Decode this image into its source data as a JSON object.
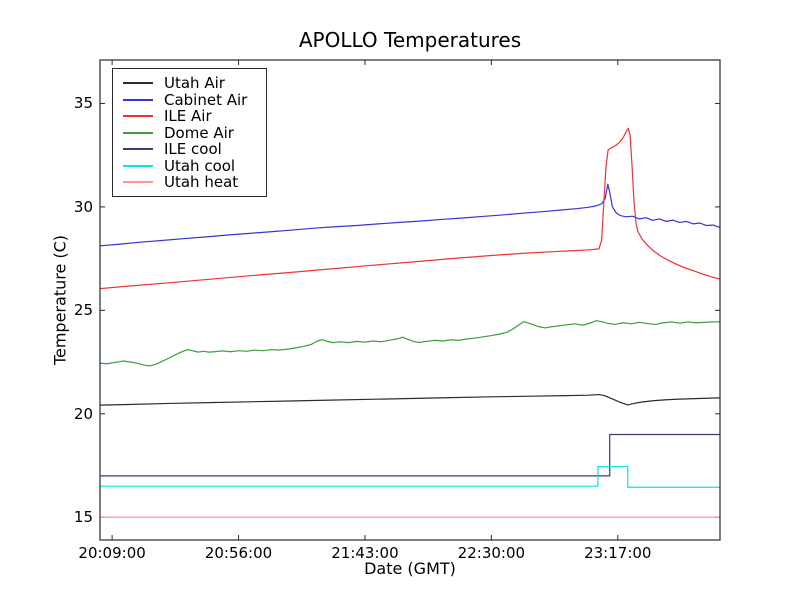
{
  "chart_data": {
    "type": "line",
    "title": "APOLLO Temperatures",
    "xlabel": "Date (GMT)",
    "ylabel": "Temperature (C)",
    "x_unit": "minutes after 20:00:00 GMT",
    "xlim": [
      4.5,
      235
    ],
    "ylim": [
      13.9,
      37.1
    ],
    "grid": false,
    "legend_position": "upper left",
    "x_ticks": [
      {
        "t": 9,
        "label": "20:09:00"
      },
      {
        "t": 56,
        "label": "20:56:00"
      },
      {
        "t": 103,
        "label": "21:43:00"
      },
      {
        "t": 150,
        "label": "22:30:00"
      },
      {
        "t": 197,
        "label": "23:17:00"
      }
    ],
    "y_ticks": [
      15,
      20,
      25,
      30,
      35
    ],
    "series": [
      {
        "name": "Utah Air",
        "color": "#2d2d2d",
        "points": [
          [
            4.5,
            20.42
          ],
          [
            15,
            20.45
          ],
          [
            30,
            20.5
          ],
          [
            45,
            20.54
          ],
          [
            60,
            20.58
          ],
          [
            75,
            20.62
          ],
          [
            90,
            20.66
          ],
          [
            105,
            20.7
          ],
          [
            120,
            20.74
          ],
          [
            135,
            20.78
          ],
          [
            150,
            20.82
          ],
          [
            165,
            20.85
          ],
          [
            178,
            20.88
          ],
          [
            186,
            20.9
          ],
          [
            190,
            20.93
          ],
          [
            192,
            20.88
          ],
          [
            195,
            20.72
          ],
          [
            198,
            20.55
          ],
          [
            200.7,
            20.43
          ],
          [
            203,
            20.5
          ],
          [
            206,
            20.57
          ],
          [
            210,
            20.63
          ],
          [
            215,
            20.68
          ],
          [
            220,
            20.71
          ],
          [
            227,
            20.74
          ],
          [
            235,
            20.77
          ]
        ]
      },
      {
        "name": "Cabinet Air",
        "color": "#3535d6",
        "points": [
          [
            4.5,
            28.12
          ],
          [
            12,
            28.2
          ],
          [
            20,
            28.3
          ],
          [
            28,
            28.38
          ],
          [
            36,
            28.47
          ],
          [
            44,
            28.55
          ],
          [
            52,
            28.64
          ],
          [
            60,
            28.72
          ],
          [
            68,
            28.8
          ],
          [
            76,
            28.88
          ],
          [
            84,
            28.97
          ],
          [
            92,
            29.04
          ],
          [
            100,
            29.1
          ],
          [
            108,
            29.18
          ],
          [
            116,
            29.25
          ],
          [
            124,
            29.32
          ],
          [
            132,
            29.4
          ],
          [
            140,
            29.47
          ],
          [
            148,
            29.55
          ],
          [
            156,
            29.63
          ],
          [
            164,
            29.72
          ],
          [
            170,
            29.78
          ],
          [
            176,
            29.85
          ],
          [
            182,
            29.92
          ],
          [
            186,
            29.98
          ],
          [
            189,
            30.05
          ],
          [
            191,
            30.15
          ],
          [
            192.3,
            30.4
          ],
          [
            193.3,
            31.1
          ],
          [
            194,
            30.7
          ],
          [
            195,
            30.0
          ],
          [
            196.5,
            29.7
          ],
          [
            198,
            29.58
          ],
          [
            200,
            29.52
          ],
          [
            202.5,
            29.55
          ],
          [
            205,
            29.42
          ],
          [
            207.5,
            29.48
          ],
          [
            210,
            29.35
          ],
          [
            212.5,
            29.42
          ],
          [
            215,
            29.3
          ],
          [
            217.5,
            29.36
          ],
          [
            220,
            29.25
          ],
          [
            222.5,
            29.3
          ],
          [
            225,
            29.18
          ],
          [
            227.5,
            29.22
          ],
          [
            230,
            29.1
          ],
          [
            232.5,
            29.12
          ],
          [
            235,
            29.0
          ]
        ]
      },
      {
        "name": "ILE Air",
        "color": "#ee3333",
        "points": [
          [
            4.5,
            26.05
          ],
          [
            15,
            26.17
          ],
          [
            30,
            26.33
          ],
          [
            45,
            26.5
          ],
          [
            60,
            26.67
          ],
          [
            75,
            26.83
          ],
          [
            90,
            27.0
          ],
          [
            105,
            27.17
          ],
          [
            120,
            27.33
          ],
          [
            135,
            27.5
          ],
          [
            150,
            27.65
          ],
          [
            162,
            27.76
          ],
          [
            172,
            27.83
          ],
          [
            180,
            27.88
          ],
          [
            186,
            27.92
          ],
          [
            190,
            27.97
          ],
          [
            191,
            28.4
          ],
          [
            191.8,
            30.2
          ],
          [
            192.6,
            31.9
          ],
          [
            193.4,
            32.75
          ],
          [
            194.5,
            32.85
          ],
          [
            196,
            32.95
          ],
          [
            197.5,
            33.1
          ],
          [
            199,
            33.35
          ],
          [
            200.2,
            33.65
          ],
          [
            200.9,
            33.8
          ],
          [
            201.6,
            33.45
          ],
          [
            202.3,
            32.0
          ],
          [
            203,
            30.3
          ],
          [
            203.8,
            29.2
          ],
          [
            204.5,
            28.8
          ],
          [
            206,
            28.45
          ],
          [
            208,
            28.15
          ],
          [
            210.5,
            27.85
          ],
          [
            213,
            27.62
          ],
          [
            216,
            27.4
          ],
          [
            219,
            27.22
          ],
          [
            222,
            27.05
          ],
          [
            225,
            26.92
          ],
          [
            228,
            26.78
          ],
          [
            231,
            26.65
          ],
          [
            233.5,
            26.56
          ],
          [
            235,
            26.52
          ]
        ]
      },
      {
        "name": "Dome Air",
        "color": "#3c9e3c",
        "points": [
          [
            4.5,
            22.45
          ],
          [
            7,
            22.42
          ],
          [
            9,
            22.46
          ],
          [
            11,
            22.5
          ],
          [
            13,
            22.55
          ],
          [
            15,
            22.52
          ],
          [
            17,
            22.48
          ],
          [
            19,
            22.42
          ],
          [
            21,
            22.35
          ],
          [
            23,
            22.32
          ],
          [
            25,
            22.38
          ],
          [
            27,
            22.5
          ],
          [
            29,
            22.62
          ],
          [
            31,
            22.75
          ],
          [
            33,
            22.88
          ],
          [
            35,
            23.0
          ],
          [
            37,
            23.1
          ],
          [
            39,
            23.05
          ],
          [
            41,
            22.98
          ],
          [
            43,
            23.02
          ],
          [
            45,
            22.98
          ],
          [
            47,
            23.0
          ],
          [
            50,
            23.04
          ],
          [
            53,
            23.0
          ],
          [
            56,
            23.05
          ],
          [
            59,
            23.02
          ],
          [
            62,
            23.08
          ],
          [
            65,
            23.05
          ],
          [
            68,
            23.1
          ],
          [
            71,
            23.08
          ],
          [
            74,
            23.12
          ],
          [
            77,
            23.18
          ],
          [
            80,
            23.25
          ],
          [
            83,
            23.35
          ],
          [
            85,
            23.5
          ],
          [
            87,
            23.58
          ],
          [
            89,
            23.5
          ],
          [
            91,
            23.44
          ],
          [
            94,
            23.48
          ],
          [
            97,
            23.44
          ],
          [
            100,
            23.5
          ],
          [
            103,
            23.46
          ],
          [
            106,
            23.52
          ],
          [
            109,
            23.48
          ],
          [
            112,
            23.55
          ],
          [
            115,
            23.62
          ],
          [
            117,
            23.7
          ],
          [
            119,
            23.6
          ],
          [
            121,
            23.5
          ],
          [
            123,
            23.45
          ],
          [
            126,
            23.5
          ],
          [
            129,
            23.55
          ],
          [
            132,
            23.52
          ],
          [
            135,
            23.58
          ],
          [
            138,
            23.55
          ],
          [
            141,
            23.62
          ],
          [
            144,
            23.66
          ],
          [
            147,
            23.72
          ],
          [
            150,
            23.78
          ],
          [
            153,
            23.85
          ],
          [
            156,
            23.95
          ],
          [
            158,
            24.1
          ],
          [
            160,
            24.28
          ],
          [
            162,
            24.45
          ],
          [
            164,
            24.38
          ],
          [
            166,
            24.28
          ],
          [
            168,
            24.2
          ],
          [
            170,
            24.15
          ],
          [
            172,
            24.2
          ],
          [
            175,
            24.25
          ],
          [
            178,
            24.3
          ],
          [
            181,
            24.35
          ],
          [
            184,
            24.28
          ],
          [
            187,
            24.4
          ],
          [
            189,
            24.5
          ],
          [
            191,
            24.45
          ],
          [
            193,
            24.38
          ],
          [
            196,
            24.32
          ],
          [
            199,
            24.4
          ],
          [
            202,
            24.35
          ],
          [
            205,
            24.42
          ],
          [
            208,
            24.36
          ],
          [
            211,
            24.32
          ],
          [
            214,
            24.4
          ],
          [
            217,
            24.44
          ],
          [
            220,
            24.38
          ],
          [
            223,
            24.44
          ],
          [
            226,
            24.4
          ],
          [
            229,
            24.42
          ],
          [
            232,
            24.44
          ],
          [
            235,
            24.45
          ]
        ]
      },
      {
        "name": "ILE cool",
        "color": "#3b3b75",
        "points": [
          [
            4.5,
            17.0
          ],
          [
            194,
            17.0
          ],
          [
            194,
            19.0
          ],
          [
            235,
            19.0
          ]
        ]
      },
      {
        "name": "Utah cool",
        "color": "#00e8e8",
        "points": [
          [
            4.5,
            16.5
          ],
          [
            189.6,
            16.5
          ],
          [
            189.6,
            17.45
          ],
          [
            200.7,
            17.45
          ],
          [
            200.7,
            16.45
          ],
          [
            235,
            16.45
          ]
        ]
      },
      {
        "name": "Utah heat",
        "color": "#ff9595",
        "points": [
          [
            4.5,
            15.0
          ],
          [
            235,
            15.0
          ]
        ]
      }
    ]
  }
}
